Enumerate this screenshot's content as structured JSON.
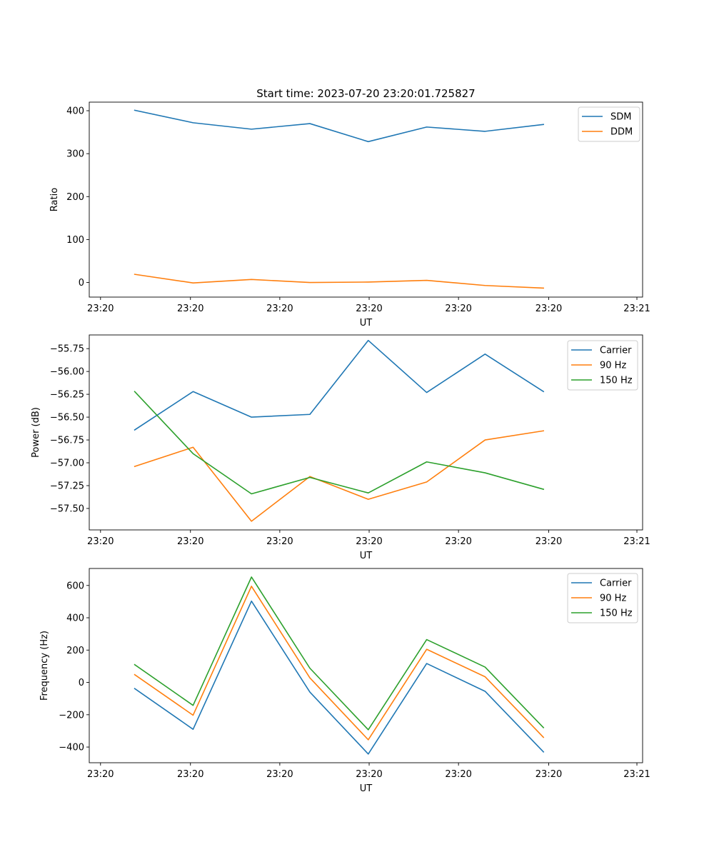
{
  "chart_data": [
    {
      "type": "line",
      "title": "Start time: 2023-07-20 23:20:01.725827",
      "xlabel": "UT",
      "ylabel": "Ratio",
      "x": [
        1,
        2,
        3,
        4,
        5,
        6,
        7,
        8
      ],
      "xlim": [
        0.222,
        9.6975
      ],
      "xticks": [
        0.415,
        1.955,
        3.485,
        5.015,
        6.545,
        8.09,
        9.6
      ],
      "xtick_labels": [
        "23:20",
        "23:20",
        "23:20",
        "23:20",
        "23:20",
        "23:20",
        "23:21"
      ],
      "ylim": [
        -34,
        420
      ],
      "yticks": [
        0,
        100,
        200,
        300,
        400
      ],
      "ytick_labels": [
        "0",
        "100",
        "200",
        "300",
        "400"
      ],
      "legend_position": "upper-right",
      "series": [
        {
          "name": "SDM",
          "color": "#1f77b4",
          "values": [
            401,
            372,
            357,
            370,
            328,
            362,
            352,
            368
          ]
        },
        {
          "name": "DDM",
          "color": "#ff7f0e",
          "values": [
            19,
            -1,
            7,
            0,
            1,
            5,
            -7,
            -13
          ]
        }
      ]
    },
    {
      "type": "line",
      "title": "",
      "xlabel": "UT",
      "ylabel": "Power (dB)",
      "x": [
        1,
        2,
        3,
        4,
        5,
        6,
        7,
        8
      ],
      "xlim": [
        0.222,
        9.6975
      ],
      "xticks": [
        0.415,
        1.955,
        3.485,
        5.015,
        6.545,
        8.09,
        9.6
      ],
      "xtick_labels": [
        "23:20",
        "23:20",
        "23:20",
        "23:20",
        "23:20",
        "23:20",
        "23:21"
      ],
      "ylim": [
        -57.735,
        -55.6
      ],
      "yticks": [
        -57.5,
        -57.25,
        -57.0,
        -56.75,
        -56.5,
        -56.25,
        -56.0,
        -55.75
      ],
      "ytick_labels": [
        "−57.50",
        "−57.25",
        "−57.00",
        "−56.75",
        "−56.50",
        "−56.25",
        "−56.00",
        "−55.75"
      ],
      "legend_position": "upper-right",
      "series": [
        {
          "name": "Carrier",
          "color": "#1f77b4",
          "values": [
            -56.64,
            -56.22,
            -56.5,
            -56.47,
            -55.66,
            -56.23,
            -55.81,
            -56.22
          ]
        },
        {
          "name": "90 Hz",
          "color": "#ff7f0e",
          "values": [
            -57.04,
            -56.83,
            -57.64,
            -57.15,
            -57.4,
            -57.21,
            -56.75,
            -56.65
          ]
        },
        {
          "name": "150 Hz",
          "color": "#2ca02c",
          "values": [
            -56.22,
            -56.9,
            -57.34,
            -57.16,
            -57.33,
            -56.99,
            -57.11,
            -57.29
          ]
        }
      ]
    },
    {
      "type": "line",
      "title": "",
      "xlabel": "UT",
      "ylabel": "Frequency (Hz)",
      "x": [
        1,
        2,
        3,
        4,
        5,
        6,
        7,
        8
      ],
      "xlim": [
        0.222,
        9.6975
      ],
      "xticks": [
        0.415,
        1.955,
        3.485,
        5.015,
        6.545,
        8.09,
        9.6
      ],
      "xtick_labels": [
        "23:20",
        "23:20",
        "23:20",
        "23:20",
        "23:20",
        "23:20",
        "23:21"
      ],
      "ylim": [
        -497,
        705
      ],
      "yticks": [
        -400,
        -200,
        0,
        200,
        400,
        600
      ],
      "ytick_labels": [
        "−400",
        "−200",
        "0",
        "200",
        "400",
        "600"
      ],
      "legend_position": "upper-right",
      "series": [
        {
          "name": "Carrier",
          "color": "#1f77b4",
          "values": [
            -38,
            -290,
            503,
            -60,
            -443,
            117,
            -55,
            -430
          ]
        },
        {
          "name": "90 Hz",
          "color": "#ff7f0e",
          "values": [
            48,
            -203,
            595,
            28,
            -355,
            205,
            35,
            -340
          ]
        },
        {
          "name": "150 Hz",
          "color": "#2ca02c",
          "values": [
            110,
            -142,
            652,
            88,
            -293,
            265,
            95,
            -280
          ]
        }
      ]
    }
  ]
}
